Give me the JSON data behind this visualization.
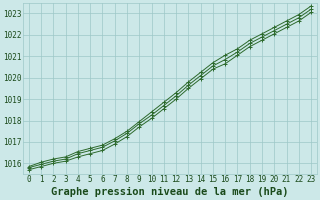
{
  "title": "Graphe pression niveau de la mer (hPa)",
  "x": [
    0,
    1,
    2,
    3,
    4,
    5,
    6,
    7,
    8,
    9,
    10,
    11,
    12,
    13,
    14,
    15,
    16,
    17,
    18,
    19,
    20,
    21,
    22,
    23
  ],
  "y_main": [
    1015.8,
    1015.95,
    1016.1,
    1016.2,
    1016.45,
    1016.6,
    1016.75,
    1017.05,
    1017.4,
    1017.85,
    1018.25,
    1018.7,
    1019.15,
    1019.65,
    1020.1,
    1020.55,
    1020.85,
    1021.2,
    1021.6,
    1021.9,
    1022.2,
    1022.5,
    1022.8,
    1023.2
  ],
  "y_high": [
    1015.85,
    1016.05,
    1016.2,
    1016.3,
    1016.55,
    1016.7,
    1016.85,
    1017.15,
    1017.5,
    1017.95,
    1018.4,
    1018.85,
    1019.3,
    1019.8,
    1020.25,
    1020.7,
    1021.05,
    1021.35,
    1021.75,
    1022.05,
    1022.35,
    1022.65,
    1022.95,
    1023.35
  ],
  "y_low": [
    1015.7,
    1015.85,
    1016.0,
    1016.1,
    1016.3,
    1016.45,
    1016.6,
    1016.9,
    1017.25,
    1017.7,
    1018.1,
    1018.55,
    1019.0,
    1019.5,
    1019.95,
    1020.4,
    1020.65,
    1021.05,
    1021.45,
    1021.75,
    1022.05,
    1022.35,
    1022.65,
    1023.05
  ],
  "line_color": "#2d6a2d",
  "bg_color": "#cce8e8",
  "grid_color": "#9dc8c8",
  "text_color": "#1a4a1a",
  "ylim": [
    1015.5,
    1023.5
  ],
  "yticks": [
    1016,
    1017,
    1018,
    1019,
    1020,
    1021,
    1022,
    1023
  ],
  "xlim": [
    -0.5,
    23.5
  ],
  "xticks": [
    0,
    1,
    2,
    3,
    4,
    5,
    6,
    7,
    8,
    9,
    10,
    11,
    12,
    13,
    14,
    15,
    16,
    17,
    18,
    19,
    20,
    21,
    22,
    23
  ],
  "title_fontsize": 7.5,
  "tick_fontsize": 5.5,
  "marker": "+"
}
